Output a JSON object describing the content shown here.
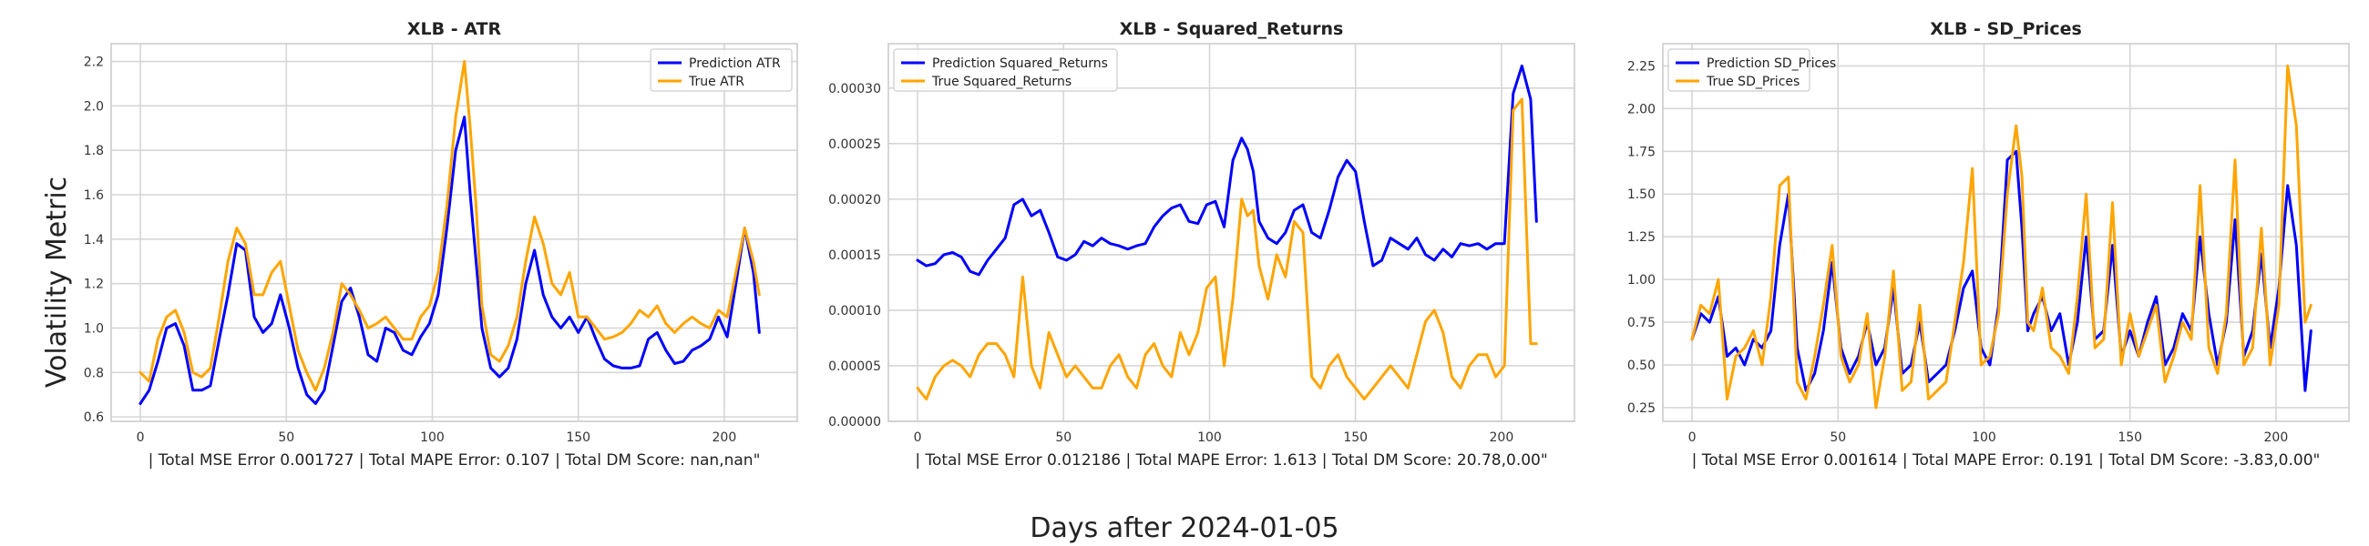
{
  "figure": {
    "ylabel": "Volatility Metric",
    "xlabel": "Days after 2024-01-05"
  },
  "chart_data": [
    {
      "type": "line",
      "title": "XLB - ATR",
      "xlabel": "| Total MSE Error 0.001727 | Total MAPE Error: 0.107 | Total DM Score: nan,nan\"",
      "xlim": [
        -10,
        225
      ],
      "ylim": [
        0.58,
        2.28
      ],
      "xticks": [
        0,
        50,
        100,
        150,
        200
      ],
      "yticks": [
        0.6,
        0.8,
        1.0,
        1.2,
        1.4,
        1.6,
        1.8,
        2.0,
        2.2
      ],
      "ytick_labels": [
        "0.6",
        "0.8",
        "1.0",
        "1.2",
        "1.4",
        "1.6",
        "1.8",
        "2.0",
        "2.2"
      ],
      "legend": "top-right",
      "series": [
        {
          "name": "Prediction ATR",
          "color": "#0000ff",
          "x": [
            0,
            3,
            6,
            9,
            12,
            15,
            18,
            21,
            24,
            27,
            30,
            33,
            36,
            39,
            42,
            45,
            48,
            51,
            54,
            57,
            60,
            63,
            66,
            69,
            72,
            75,
            78,
            81,
            84,
            87,
            90,
            93,
            96,
            99,
            102,
            105,
            108,
            111,
            113,
            115,
            117,
            120,
            123,
            126,
            129,
            132,
            135,
            138,
            141,
            144,
            147,
            150,
            153,
            156,
            159,
            162,
            165,
            168,
            171,
            174,
            177,
            180,
            183,
            186,
            189,
            192,
            195,
            198,
            201,
            204,
            207,
            210,
            212
          ],
          "values": [
            0.66,
            0.72,
            0.85,
            1.0,
            1.02,
            0.92,
            0.72,
            0.72,
            0.74,
            0.95,
            1.15,
            1.38,
            1.35,
            1.05,
            0.98,
            1.02,
            1.15,
            1.0,
            0.82,
            0.7,
            0.66,
            0.72,
            0.92,
            1.12,
            1.18,
            1.05,
            0.88,
            0.85,
            1.0,
            0.98,
            0.9,
            0.88,
            0.96,
            1.02,
            1.15,
            1.45,
            1.8,
            1.95,
            1.6,
            1.3,
            1.0,
            0.82,
            0.78,
            0.82,
            0.95,
            1.2,
            1.35,
            1.15,
            1.05,
            1.0,
            1.05,
            0.98,
            1.05,
            0.95,
            0.86,
            0.83,
            0.82,
            0.82,
            0.83,
            0.95,
            0.98,
            0.9,
            0.84,
            0.85,
            0.9,
            0.92,
            0.95,
            1.05,
            0.96,
            1.2,
            1.45,
            1.25,
            0.98
          ]
        },
        {
          "name": "True ATR",
          "color": "#ffa500",
          "x": [
            0,
            3,
            6,
            9,
            12,
            15,
            18,
            21,
            24,
            27,
            30,
            33,
            36,
            39,
            42,
            45,
            48,
            51,
            54,
            57,
            60,
            63,
            66,
            69,
            72,
            75,
            78,
            81,
            84,
            87,
            90,
            93,
            96,
            99,
            102,
            105,
            108,
            111,
            113,
            115,
            117,
            120,
            123,
            126,
            129,
            132,
            135,
            138,
            141,
            144,
            147,
            150,
            153,
            156,
            159,
            162,
            165,
            168,
            171,
            174,
            177,
            180,
            183,
            186,
            189,
            192,
            195,
            198,
            201,
            204,
            207,
            210,
            212
          ],
          "values": [
            0.8,
            0.76,
            0.95,
            1.05,
            1.08,
            0.98,
            0.8,
            0.78,
            0.82,
            1.05,
            1.3,
            1.45,
            1.38,
            1.15,
            1.15,
            1.25,
            1.3,
            1.1,
            0.9,
            0.8,
            0.72,
            0.82,
            0.98,
            1.2,
            1.15,
            1.08,
            1.0,
            1.02,
            1.05,
            1.0,
            0.95,
            0.95,
            1.05,
            1.1,
            1.25,
            1.55,
            1.95,
            2.2,
            1.9,
            1.55,
            1.1,
            0.88,
            0.85,
            0.92,
            1.05,
            1.3,
            1.5,
            1.38,
            1.2,
            1.15,
            1.25,
            1.05,
            1.05,
            1.0,
            0.95,
            0.96,
            0.98,
            1.02,
            1.08,
            1.05,
            1.1,
            1.02,
            0.98,
            1.02,
            1.05,
            1.02,
            1.0,
            1.08,
            1.05,
            1.25,
            1.45,
            1.3,
            1.15
          ]
        }
      ]
    },
    {
      "type": "line",
      "title": "XLB - Squared_Returns",
      "xlabel": "| Total MSE Error 0.012186 | Total MAPE Error: 1.613 | Total DM Score: 20.78,0.00\"",
      "xlim": [
        -10,
        225
      ],
      "ylim": [
        0,
        0.00034
      ],
      "xticks": [
        0,
        50,
        100,
        150,
        200
      ],
      "yticks": [
        0,
        5e-05,
        0.0001,
        0.00015,
        0.0002,
        0.00025,
        0.0003
      ],
      "ytick_labels": [
        "0.00000",
        "0.00005",
        "0.00010",
        "0.00015",
        "0.00020",
        "0.00025",
        "0.00030"
      ],
      "legend": "top-left",
      "series": [
        {
          "name": "Prediction Squared_Returns",
          "color": "#0000ff",
          "x": [
            0,
            3,
            6,
            9,
            12,
            15,
            18,
            21,
            24,
            27,
            30,
            33,
            36,
            39,
            42,
            45,
            48,
            51,
            54,
            57,
            60,
            63,
            66,
            69,
            72,
            75,
            78,
            81,
            84,
            87,
            90,
            93,
            96,
            99,
            102,
            105,
            108,
            111,
            113,
            115,
            117,
            120,
            123,
            126,
            129,
            132,
            135,
            138,
            141,
            144,
            147,
            150,
            153,
            156,
            159,
            162,
            165,
            168,
            171,
            174,
            177,
            180,
            183,
            186,
            189,
            192,
            195,
            198,
            201,
            204,
            207,
            210,
            212
          ],
          "values": [
            0.000145,
            0.00014,
            0.000142,
            0.00015,
            0.000152,
            0.000148,
            0.000135,
            0.000132,
            0.000145,
            0.000155,
            0.000165,
            0.000195,
            0.0002,
            0.000185,
            0.00019,
            0.00017,
            0.000148,
            0.000145,
            0.00015,
            0.000162,
            0.000158,
            0.000165,
            0.00016,
            0.000158,
            0.000155,
            0.000158,
            0.00016,
            0.000175,
            0.000185,
            0.000192,
            0.000195,
            0.00018,
            0.000178,
            0.000195,
            0.000198,
            0.000175,
            0.000235,
            0.000255,
            0.000245,
            0.000225,
            0.00018,
            0.000165,
            0.00016,
            0.00017,
            0.00019,
            0.000195,
            0.00017,
            0.000165,
            0.00019,
            0.00022,
            0.000235,
            0.000225,
            0.00018,
            0.00014,
            0.000145,
            0.000165,
            0.00016,
            0.000155,
            0.000165,
            0.00015,
            0.000145,
            0.000155,
            0.000148,
            0.00016,
            0.000158,
            0.00016,
            0.000155,
            0.00016,
            0.00016,
            0.000295,
            0.00032,
            0.00029,
            0.00018
          ]
        },
        {
          "name": "True Squared_Returns",
          "color": "#ffa500",
          "x": [
            0,
            3,
            6,
            9,
            12,
            15,
            18,
            21,
            24,
            27,
            30,
            33,
            36,
            39,
            42,
            45,
            48,
            51,
            54,
            57,
            60,
            63,
            66,
            69,
            72,
            75,
            78,
            81,
            84,
            87,
            90,
            93,
            96,
            99,
            102,
            105,
            108,
            111,
            113,
            115,
            117,
            120,
            123,
            126,
            129,
            132,
            135,
            138,
            141,
            144,
            147,
            150,
            153,
            156,
            159,
            162,
            165,
            168,
            171,
            174,
            177,
            180,
            183,
            186,
            189,
            192,
            195,
            198,
            201,
            204,
            207,
            210,
            212
          ],
          "values": [
            3e-05,
            2e-05,
            4e-05,
            5e-05,
            5.5e-05,
            5e-05,
            4e-05,
            6e-05,
            7e-05,
            7e-05,
            6e-05,
            4e-05,
            0.00013,
            5e-05,
            3e-05,
            8e-05,
            6e-05,
            4e-05,
            5e-05,
            4e-05,
            3e-05,
            3e-05,
            5e-05,
            6e-05,
            4e-05,
            3e-05,
            6e-05,
            7e-05,
            5e-05,
            4e-05,
            8e-05,
            6e-05,
            8e-05,
            0.00012,
            0.00013,
            5e-05,
            0.00011,
            0.0002,
            0.000185,
            0.00019,
            0.00014,
            0.00011,
            0.00015,
            0.00013,
            0.00018,
            0.00017,
            4e-05,
            3e-05,
            5e-05,
            6e-05,
            4e-05,
            3e-05,
            2e-05,
            3e-05,
            4e-05,
            5e-05,
            4e-05,
            3e-05,
            6e-05,
            9e-05,
            0.0001,
            8e-05,
            4e-05,
            3e-05,
            5e-05,
            6e-05,
            6e-05,
            4e-05,
            5e-05,
            0.00028,
            0.00029,
            7e-05,
            7e-05
          ]
        }
      ]
    },
    {
      "type": "line",
      "title": "XLB - SD_Prices",
      "xlabel": "| Total MSE Error 0.001614 | Total MAPE Error: 0.191 | Total DM Score: -3.83,0.00\"",
      "xlim": [
        -10,
        225
      ],
      "ylim": [
        0.17,
        2.38
      ],
      "xticks": [
        0,
        50,
        100,
        150,
        200
      ],
      "yticks": [
        0.25,
        0.5,
        0.75,
        1.0,
        1.25,
        1.5,
        1.75,
        2.0,
        2.25
      ],
      "ytick_labels": [
        "0.25",
        "0.50",
        "0.75",
        "1.00",
        "1.25",
        "1.50",
        "1.75",
        "2.00",
        "2.25"
      ],
      "legend": "top-left",
      "series": [
        {
          "name": "Prediction SD_Prices",
          "color": "#0000ff",
          "x": [
            0,
            3,
            6,
            9,
            12,
            15,
            18,
            21,
            24,
            27,
            30,
            33,
            36,
            39,
            42,
            45,
            48,
            51,
            54,
            57,
            60,
            63,
            66,
            69,
            72,
            75,
            78,
            81,
            84,
            87,
            90,
            93,
            96,
            99,
            102,
            105,
            108,
            111,
            113,
            115,
            117,
            120,
            123,
            126,
            129,
            132,
            135,
            138,
            141,
            144,
            147,
            150,
            153,
            156,
            159,
            162,
            165,
            168,
            171,
            174,
            177,
            180,
            183,
            186,
            189,
            192,
            195,
            198,
            201,
            204,
            207,
            210,
            212
          ],
          "values": [
            0.65,
            0.8,
            0.75,
            0.9,
            0.55,
            0.6,
            0.5,
            0.65,
            0.6,
            0.7,
            1.2,
            1.5,
            0.6,
            0.35,
            0.45,
            0.7,
            1.1,
            0.6,
            0.45,
            0.55,
            0.75,
            0.5,
            0.6,
            0.95,
            0.45,
            0.5,
            0.75,
            0.4,
            0.45,
            0.5,
            0.7,
            0.95,
            1.05,
            0.6,
            0.5,
            0.85,
            1.7,
            1.75,
            1.3,
            0.7,
            0.8,
            0.9,
            0.7,
            0.8,
            0.5,
            0.75,
            1.25,
            0.65,
            0.7,
            1.2,
            0.55,
            0.7,
            0.55,
            0.75,
            0.9,
            0.5,
            0.6,
            0.8,
            0.7,
            1.25,
            0.8,
            0.5,
            0.75,
            1.35,
            0.55,
            0.7,
            1.15,
            0.6,
            0.95,
            1.55,
            1.2,
            0.35,
            0.7
          ]
        },
        {
          "name": "True SD_Prices",
          "color": "#ffa500",
          "x": [
            0,
            3,
            6,
            9,
            12,
            15,
            18,
            21,
            24,
            27,
            30,
            33,
            36,
            39,
            42,
            45,
            48,
            51,
            54,
            57,
            60,
            63,
            66,
            69,
            72,
            75,
            78,
            81,
            84,
            87,
            90,
            93,
            96,
            99,
            102,
            105,
            108,
            111,
            113,
            115,
            117,
            120,
            123,
            126,
            129,
            132,
            135,
            138,
            141,
            144,
            147,
            150,
            153,
            156,
            159,
            162,
            165,
            168,
            171,
            174,
            177,
            180,
            183,
            186,
            189,
            192,
            195,
            198,
            201,
            204,
            207,
            210,
            212
          ],
          "values": [
            0.65,
            0.85,
            0.8,
            1.0,
            0.3,
            0.55,
            0.6,
            0.7,
            0.5,
            0.9,
            1.55,
            1.6,
            0.4,
            0.3,
            0.55,
            0.85,
            1.2,
            0.55,
            0.4,
            0.5,
            0.8,
            0.25,
            0.55,
            1.05,
            0.35,
            0.4,
            0.85,
            0.3,
            0.35,
            0.4,
            0.75,
            1.1,
            1.65,
            0.5,
            0.55,
            0.8,
            1.5,
            1.9,
            1.6,
            0.75,
            0.7,
            0.95,
            0.6,
            0.55,
            0.45,
            0.9,
            1.5,
            0.6,
            0.65,
            1.45,
            0.5,
            0.8,
            0.55,
            0.7,
            0.85,
            0.4,
            0.55,
            0.75,
            0.65,
            1.55,
            0.6,
            0.45,
            0.8,
            1.7,
            0.5,
            0.6,
            1.3,
            0.5,
            0.85,
            2.25,
            1.9,
            0.75,
            0.85
          ]
        }
      ]
    }
  ]
}
